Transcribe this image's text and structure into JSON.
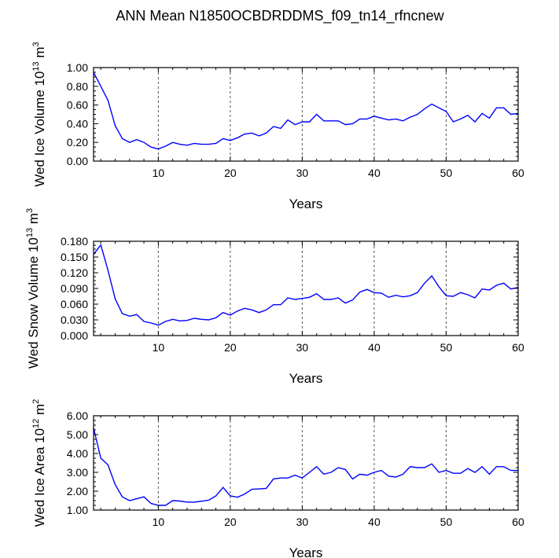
{
  "title": "ANN Mean N1850OCBDRDDMS_f09_tn14_rfncnew",
  "chart_data": [
    {
      "type": "line",
      "xlabel": "Years",
      "ylabel": {
        "text": "Wed Ice Volume 10",
        "sup": "13",
        "unit": " m",
        "unit_sup": "3"
      },
      "xlim": [
        1,
        60
      ],
      "ylim": [
        0.0,
        1.0
      ],
      "xticks": [
        10,
        20,
        30,
        40,
        50,
        60
      ],
      "yticks": [
        "0.00",
        "0.20",
        "0.40",
        "0.60",
        "0.80",
        "1.00"
      ],
      "ytick_values": [
        0.0,
        0.2,
        0.4,
        0.6,
        0.8,
        1.0
      ],
      "x_grid": "dashed vertical lines at 10, 20, 30, 40, 50",
      "color": "#0000ff",
      "x": [
        1,
        2,
        3,
        4,
        5,
        6,
        7,
        8,
        9,
        10,
        11,
        12,
        13,
        14,
        15,
        16,
        17,
        18,
        19,
        20,
        21,
        22,
        23,
        24,
        25,
        26,
        27,
        28,
        29,
        30,
        31,
        32,
        33,
        34,
        35,
        36,
        37,
        38,
        39,
        40,
        41,
        42,
        43,
        44,
        45,
        46,
        47,
        48,
        49,
        50,
        51,
        52,
        53,
        54,
        55,
        56,
        57,
        58,
        59,
        60
      ],
      "values": [
        0.95,
        0.8,
        0.65,
        0.38,
        0.24,
        0.2,
        0.23,
        0.2,
        0.15,
        0.13,
        0.16,
        0.2,
        0.18,
        0.17,
        0.19,
        0.18,
        0.18,
        0.19,
        0.24,
        0.22,
        0.25,
        0.29,
        0.3,
        0.27,
        0.3,
        0.37,
        0.35,
        0.44,
        0.39,
        0.42,
        0.42,
        0.5,
        0.43,
        0.43,
        0.43,
        0.39,
        0.4,
        0.45,
        0.45,
        0.48,
        0.46,
        0.44,
        0.45,
        0.43,
        0.47,
        0.5,
        0.56,
        0.61,
        0.57,
        0.53,
        0.42,
        0.45,
        0.49,
        0.42,
        0.51,
        0.46,
        0.57,
        0.57,
        0.5,
        0.51
      ]
    },
    {
      "type": "line",
      "xlabel": "Years",
      "ylabel": {
        "text": "Wed Snow Volume 10",
        "sup": "13",
        "unit": " m",
        "unit_sup": "3"
      },
      "xlim": [
        1,
        60
      ],
      "ylim": [
        0.0,
        0.18
      ],
      "xticks": [
        10,
        20,
        30,
        40,
        50,
        60
      ],
      "yticks": [
        "0.000",
        "0.030",
        "0.060",
        "0.090",
        "0.120",
        "0.150",
        "0.180"
      ],
      "ytick_values": [
        0.0,
        0.03,
        0.06,
        0.09,
        0.12,
        0.15,
        0.18
      ],
      "x_grid": "dashed vertical lines at 10, 20, 30, 40, 50",
      "color": "#0000ff",
      "x": [
        1,
        2,
        3,
        4,
        5,
        6,
        7,
        8,
        9,
        10,
        11,
        12,
        13,
        14,
        15,
        16,
        17,
        18,
        19,
        20,
        21,
        22,
        23,
        24,
        25,
        26,
        27,
        28,
        29,
        30,
        31,
        32,
        33,
        34,
        35,
        36,
        37,
        38,
        39,
        40,
        41,
        42,
        43,
        44,
        45,
        46,
        47,
        48,
        49,
        50,
        51,
        52,
        53,
        54,
        55,
        56,
        57,
        58,
        59,
        60
      ],
      "values": [
        0.155,
        0.173,
        0.125,
        0.07,
        0.042,
        0.037,
        0.04,
        0.027,
        0.024,
        0.02,
        0.027,
        0.031,
        0.028,
        0.029,
        0.033,
        0.031,
        0.03,
        0.034,
        0.044,
        0.039,
        0.047,
        0.052,
        0.049,
        0.044,
        0.049,
        0.059,
        0.059,
        0.072,
        0.069,
        0.071,
        0.073,
        0.08,
        0.069,
        0.069,
        0.072,
        0.062,
        0.068,
        0.083,
        0.088,
        0.082,
        0.081,
        0.073,
        0.077,
        0.074,
        0.076,
        0.082,
        0.1,
        0.114,
        0.093,
        0.076,
        0.075,
        0.082,
        0.078,
        0.072,
        0.089,
        0.087,
        0.096,
        0.1,
        0.089,
        0.092
      ]
    },
    {
      "type": "line",
      "xlabel": "Years",
      "ylabel": {
        "text": "Wed Ice Area 10",
        "sup": "12",
        "unit": " m",
        "unit_sup": "2"
      },
      "xlim": [
        1,
        60
      ],
      "ylim": [
        1.0,
        6.0
      ],
      "xticks": [
        10,
        20,
        30,
        40,
        50,
        60
      ],
      "yticks": [
        "1.00",
        "2.00",
        "3.00",
        "4.00",
        "5.00",
        "6.00"
      ],
      "ytick_values": [
        1.0,
        2.0,
        3.0,
        4.0,
        5.0,
        6.0
      ],
      "x_grid": "dashed vertical lines at 10, 20, 30, 40, 50",
      "color": "#0000ff",
      "x": [
        1,
        2,
        3,
        4,
        5,
        6,
        7,
        8,
        9,
        10,
        11,
        12,
        13,
        14,
        15,
        16,
        17,
        18,
        19,
        20,
        21,
        22,
        23,
        24,
        25,
        26,
        27,
        28,
        29,
        30,
        31,
        32,
        33,
        34,
        35,
        36,
        37,
        38,
        39,
        40,
        41,
        42,
        43,
        44,
        45,
        46,
        47,
        48,
        49,
        50,
        51,
        52,
        53,
        54,
        55,
        56,
        57,
        58,
        59,
        60
      ],
      "values": [
        5.35,
        3.75,
        3.4,
        2.35,
        1.7,
        1.5,
        1.6,
        1.7,
        1.35,
        1.25,
        1.25,
        1.5,
        1.48,
        1.42,
        1.42,
        1.47,
        1.52,
        1.75,
        2.2,
        1.75,
        1.68,
        1.85,
        2.1,
        2.12,
        2.15,
        2.65,
        2.7,
        2.7,
        2.85,
        2.7,
        3.0,
        3.3,
        2.9,
        3.0,
        3.25,
        3.15,
        2.65,
        2.9,
        2.85,
        3.0,
        3.1,
        2.8,
        2.75,
        2.9,
        3.3,
        3.25,
        3.25,
        3.45,
        3.0,
        3.1,
        2.95,
        2.95,
        3.2,
        3.0,
        3.3,
        2.9,
        3.3,
        3.3,
        3.1,
        3.1
      ]
    }
  ]
}
